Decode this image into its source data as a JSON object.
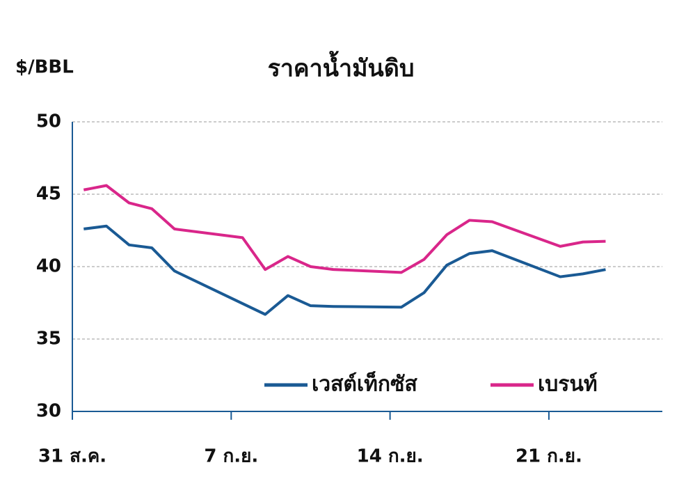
{
  "chart_data": {
    "type": "line",
    "title": "ราคาน้ำมันดิบ",
    "y_label": "$/BBL",
    "xlim": [
      0,
      26
    ],
    "xticks": [
      {
        "value": 0,
        "label": "31 ส.ค."
      },
      {
        "value": 7,
        "label": "7 ก.ย."
      },
      {
        "value": 14,
        "label": "14 ก.ย."
      },
      {
        "value": 21,
        "label": "21 ก.ย."
      }
    ],
    "ylim": [
      30,
      50
    ],
    "yticks": [
      30,
      35,
      40,
      45,
      50
    ],
    "grid": true,
    "legend": "lower right",
    "series": [
      {
        "name": "เวสต์เท็กซัส",
        "color": "#1a5a94",
        "x": [
          0.5,
          1.5,
          2.5,
          3.5,
          4.5,
          8.5,
          9.5,
          10.5,
          11.5,
          14.5,
          15.5,
          16.5,
          17.5,
          18.5,
          21.5,
          22.5,
          23.5
        ],
        "values": [
          42.6,
          42.8,
          41.5,
          41.3,
          39.7,
          36.7,
          38.0,
          37.3,
          37.25,
          37.2,
          38.2,
          40.1,
          40.9,
          41.1,
          39.3,
          39.5,
          39.8
        ]
      },
      {
        "name": "เบรนท์",
        "color": "#d9268a",
        "x": [
          0.5,
          1.5,
          2.5,
          3.5,
          4.5,
          7.5,
          8.5,
          9.5,
          10.5,
          11.5,
          14.5,
          15.5,
          16.5,
          17.5,
          18.5,
          21.5,
          22.5,
          23.5
        ],
        "values": [
          45.3,
          45.6,
          44.4,
          44.0,
          42.6,
          42.0,
          39.8,
          40.7,
          40.0,
          39.8,
          39.6,
          40.5,
          42.2,
          43.2,
          43.1,
          41.4,
          41.7,
          41.75
        ]
      }
    ]
  }
}
